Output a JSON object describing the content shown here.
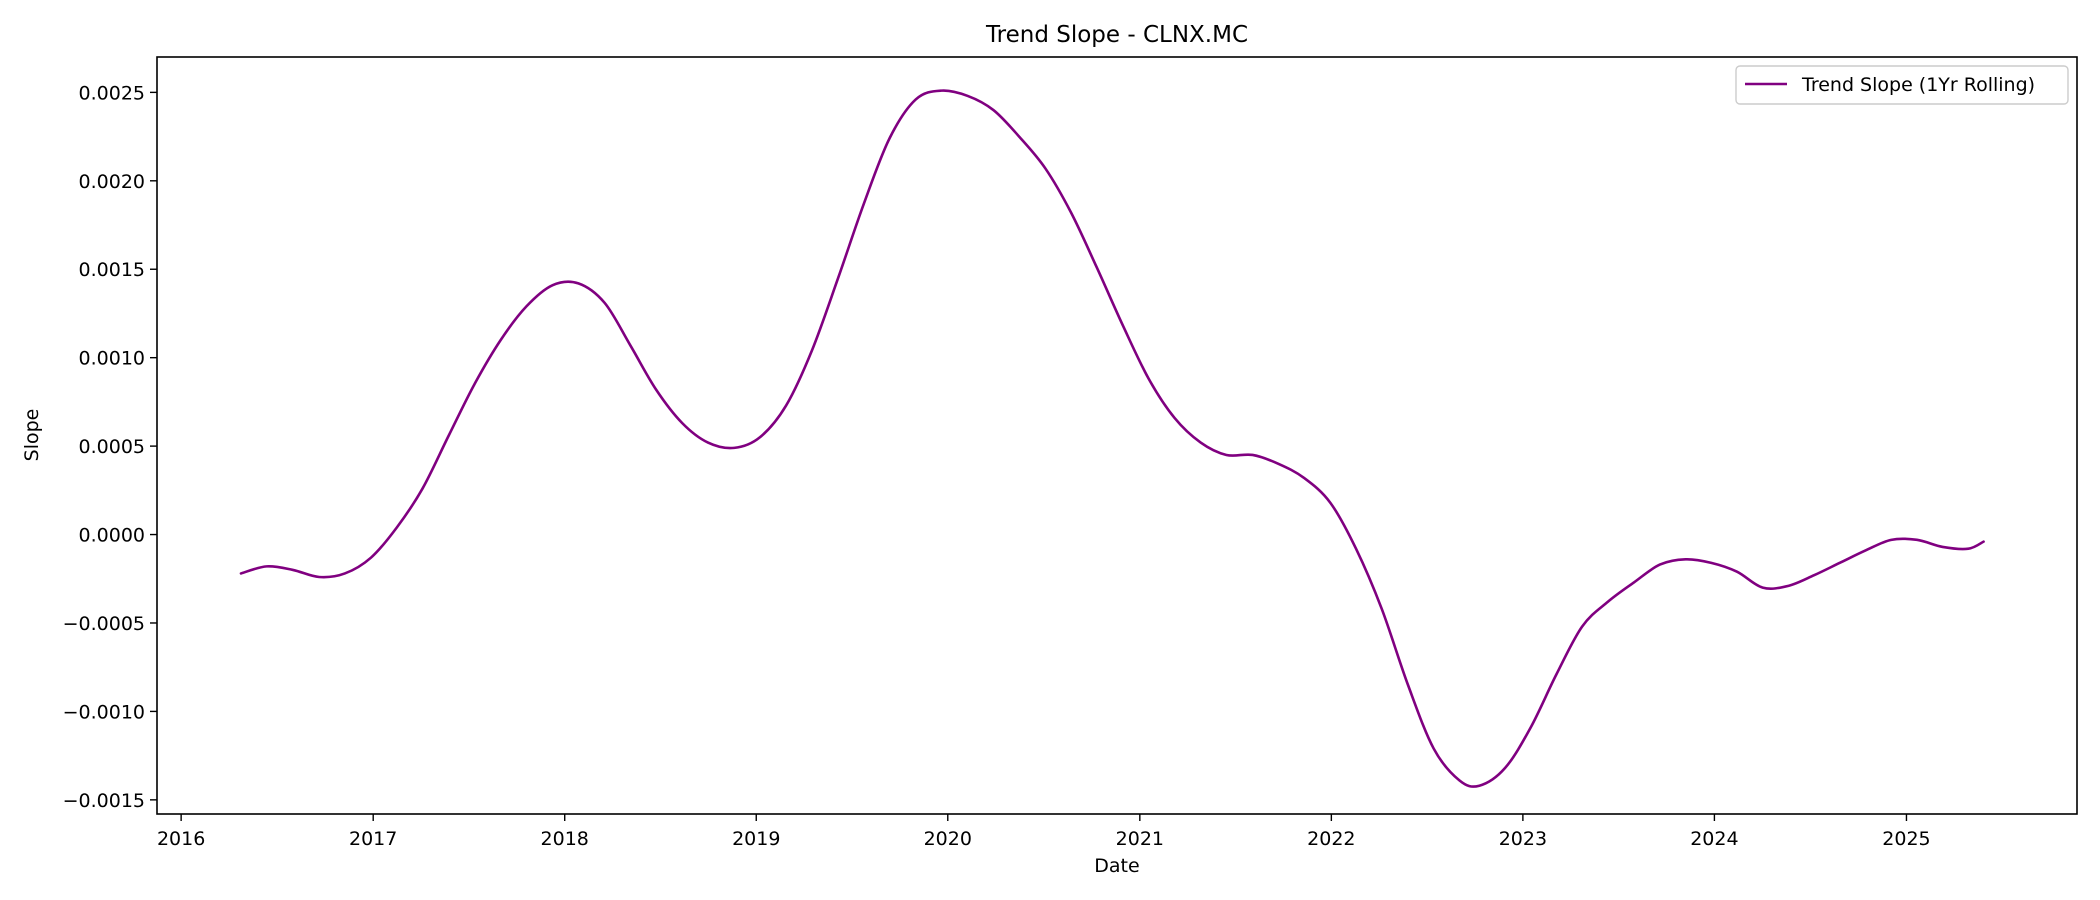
{
  "chart_data": {
    "type": "line",
    "title": "Trend Slope - CLNX.MC",
    "xlabel": "Date",
    "ylabel": "Slope",
    "x_ticks": [
      "2016",
      "2017",
      "2018",
      "2019",
      "2020",
      "2021",
      "2022",
      "2023",
      "2024",
      "2025"
    ],
    "y_ticks": [
      "0.0025",
      "0.0020",
      "0.0015",
      "0.0010",
      "0.0005",
      "0.0000",
      "−0.0005",
      "−0.0010",
      "−0.0015"
    ],
    "xlim": [
      "2015-11-16",
      "2025-11-22"
    ],
    "ylim": [
      -0.00158,
      0.0027
    ],
    "grid": false,
    "legend_position": "top-right",
    "series": [
      {
        "name": "Trend Slope (1Yr Rolling)",
        "color": "#800080",
        "points": [
          [
            "2016-04-24",
            -0.00022
          ],
          [
            "2016-06-12",
            -0.00018
          ],
          [
            "2016-08-01",
            -0.0002
          ],
          [
            "2016-09-20",
            -0.00024
          ],
          [
            "2016-11-08",
            -0.00022
          ],
          [
            "2016-12-28",
            -0.00013
          ],
          [
            "2017-02-15",
            4e-05
          ],
          [
            "2017-04-05",
            0.00026
          ],
          [
            "2017-05-25",
            0.00056
          ],
          [
            "2017-07-13",
            0.00085
          ],
          [
            "2017-09-01",
            0.0011
          ],
          [
            "2017-10-20",
            0.00129
          ],
          [
            "2017-12-09",
            0.00141
          ],
          [
            "2018-01-27",
            0.00142
          ],
          [
            "2018-03-18",
            0.00131
          ],
          [
            "2018-05-06",
            0.00107
          ],
          [
            "2018-06-24",
            0.00082
          ],
          [
            "2018-08-13",
            0.00063
          ],
          [
            "2018-10-01",
            0.00052
          ],
          [
            "2018-11-20",
            0.00049
          ],
          [
            "2019-01-08",
            0.00055
          ],
          [
            "2019-02-27",
            0.00073
          ],
          [
            "2019-04-17",
            0.00104
          ],
          [
            "2019-06-06",
            0.00145
          ],
          [
            "2019-07-25",
            0.00187
          ],
          [
            "2019-09-12",
            0.00224
          ],
          [
            "2019-11-01",
            0.00246
          ],
          [
            "2019-12-20",
            0.00251
          ],
          [
            "2020-02-08",
            0.00248
          ],
          [
            "2020-03-28",
            0.0024
          ],
          [
            "2020-05-16",
            0.00225
          ],
          [
            "2020-07-05",
            0.00207
          ],
          [
            "2020-08-23",
            0.00182
          ],
          [
            "2020-10-11",
            0.00151
          ],
          [
            "2020-11-30",
            0.00118
          ],
          [
            "2021-01-18",
            0.00088
          ],
          [
            "2021-03-08",
            0.00066
          ],
          [
            "2021-04-27",
            0.00052
          ],
          [
            "2021-06-15",
            0.00045
          ],
          [
            "2021-08-04",
            0.00045
          ],
          [
            "2021-09-22",
            0.0004
          ],
          [
            "2021-11-10",
            0.00032
          ],
          [
            "2021-12-30",
            0.00018
          ],
          [
            "2022-02-17",
            -8e-05
          ],
          [
            "2022-04-07",
            -0.00042
          ],
          [
            "2022-05-27",
            -0.00085
          ],
          [
            "2022-07-15",
            -0.00121
          ],
          [
            "2022-09-02",
            -0.00139
          ],
          [
            "2022-10-10",
            -0.00142
          ],
          [
            "2022-11-28",
            -0.00132
          ],
          [
            "2023-01-16",
            -0.00109
          ],
          [
            "2023-03-06",
            -0.00079
          ],
          [
            "2023-04-24",
            -0.00052
          ],
          [
            "2023-06-12",
            -0.00038
          ],
          [
            "2023-08-01",
            -0.00027
          ],
          [
            "2023-09-19",
            -0.00017
          ],
          [
            "2023-11-07",
            -0.00014
          ],
          [
            "2023-12-26",
            -0.00016
          ],
          [
            "2024-02-13",
            -0.00021
          ],
          [
            "2024-04-02",
            -0.0003
          ],
          [
            "2024-05-21",
            -0.00029
          ],
          [
            "2024-07-09",
            -0.00023
          ],
          [
            "2024-08-27",
            -0.00016
          ],
          [
            "2024-10-15",
            -9e-05
          ],
          [
            "2024-12-03",
            -3e-05
          ],
          [
            "2025-01-21",
            -3e-05
          ],
          [
            "2025-03-11",
            -7e-05
          ],
          [
            "2025-04-29",
            -8e-05
          ],
          [
            "2025-05-28",
            -4e-05
          ]
        ]
      }
    ]
  }
}
